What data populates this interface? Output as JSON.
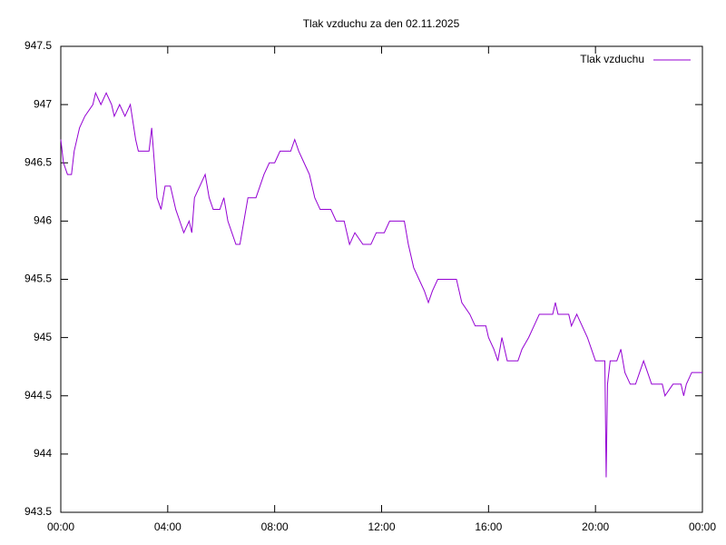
{
  "chart_data": {
    "type": "line",
    "title": "Tlak vzduchu za den 02.11.2025",
    "legend": "top-right",
    "xlim": [
      0,
      24
    ],
    "xticks": [
      {
        "value": 0,
        "label": "00:00"
      },
      {
        "value": 4,
        "label": "04:00"
      },
      {
        "value": 8,
        "label": "08:00"
      },
      {
        "value": 12,
        "label": "12:00"
      },
      {
        "value": 16,
        "label": "16:00"
      },
      {
        "value": 20,
        "label": "20:00"
      },
      {
        "value": 24,
        "label": "00:00"
      }
    ],
    "ylim": [
      943.5,
      947.5
    ],
    "yticks": [
      943.5,
      944,
      944.5,
      945,
      945.5,
      946,
      946.5,
      947,
      947.5
    ],
    "x": [
      0,
      0.1,
      0.25,
      0.4,
      0.5,
      0.7,
      0.9,
      1.2,
      1.3,
      1.5,
      1.7,
      1.9,
      2.0,
      2.2,
      2.4,
      2.6,
      2.8,
      2.9,
      3.3,
      3.4,
      3.5,
      3.6,
      3.75,
      3.9,
      4.1,
      4.2,
      4.3,
      4.45,
      4.6,
      4.8,
      4.9,
      5.0,
      5.2,
      5.4,
      5.55,
      5.7,
      5.95,
      6.1,
      6.25,
      6.4,
      6.55,
      6.7,
      6.85,
      7.0,
      7.3,
      7.45,
      7.6,
      7.8,
      8.0,
      8.2,
      8.6,
      8.75,
      8.9,
      9.1,
      9.3,
      9.5,
      9.7,
      10.1,
      10.3,
      10.6,
      10.8,
      11.0,
      11.3,
      11.6,
      11.8,
      12.1,
      12.3,
      12.6,
      12.85,
      13.0,
      13.2,
      13.4,
      13.6,
      13.75,
      13.9,
      14.1,
      14.8,
      15.0,
      15.3,
      15.5,
      15.9,
      16.0,
      16.2,
      16.35,
      16.5,
      16.7,
      17.1,
      17.25,
      17.5,
      17.7,
      17.9,
      18.4,
      18.5,
      18.6,
      19.0,
      19.1,
      19.3,
      19.5,
      19.7,
      19.85,
      20.0,
      20.35,
      20.4,
      20.45,
      20.55,
      20.8,
      20.95,
      21.1,
      21.3,
      21.5,
      21.65,
      21.8,
      21.95,
      22.1,
      22.5,
      22.6,
      22.9,
      23.2,
      23.3,
      23.4,
      23.6,
      24.0
    ],
    "series": [
      {
        "name": "Tlak vzduchu",
        "color": "#9400d3",
        "values": [
          946.7,
          946.5,
          946.4,
          946.4,
          946.6,
          946.8,
          946.9,
          947.0,
          947.1,
          947.0,
          947.1,
          947.0,
          946.9,
          947.0,
          946.9,
          947.0,
          946.7,
          946.6,
          946.6,
          946.8,
          946.5,
          946.2,
          946.1,
          946.3,
          946.3,
          946.2,
          946.1,
          946.0,
          945.9,
          946.0,
          945.9,
          946.2,
          946.3,
          946.4,
          946.2,
          946.1,
          946.1,
          946.2,
          946.0,
          945.9,
          945.8,
          945.8,
          946.0,
          946.2,
          946.2,
          946.3,
          946.4,
          946.5,
          946.5,
          946.6,
          946.6,
          946.7,
          946.6,
          946.5,
          946.4,
          946.2,
          946.1,
          946.1,
          946.0,
          946.0,
          945.8,
          945.9,
          945.8,
          945.8,
          945.9,
          945.9,
          946.0,
          946.0,
          946.0,
          945.8,
          945.6,
          945.5,
          945.4,
          945.3,
          945.4,
          945.5,
          945.5,
          945.3,
          945.2,
          945.1,
          945.1,
          945.0,
          944.9,
          944.8,
          945.0,
          944.8,
          944.8,
          944.9,
          945.0,
          945.1,
          945.2,
          945.2,
          945.3,
          945.2,
          945.2,
          945.1,
          945.2,
          945.1,
          945.0,
          944.9,
          944.8,
          944.8,
          943.8,
          944.6,
          944.8,
          944.8,
          944.9,
          944.7,
          944.6,
          944.6,
          944.7,
          944.8,
          944.7,
          944.6,
          944.6,
          944.5,
          944.6,
          944.6,
          944.5,
          944.6,
          944.7,
          944.7
        ]
      }
    ]
  }
}
